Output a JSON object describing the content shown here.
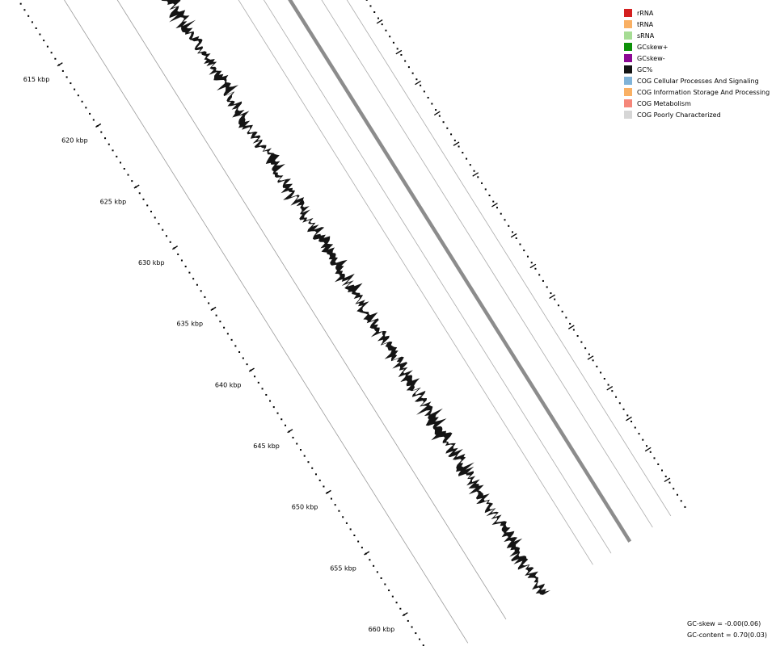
{
  "legend": {
    "items": [
      {
        "label": "rRNA",
        "color": "#d42020"
      },
      {
        "label": "tRNA",
        "color": "#f9b064"
      },
      {
        "label": "sRNA",
        "color": "#a6dc94"
      },
      {
        "label": "GCskew+",
        "color": "#0d9109"
      },
      {
        "label": "GCskew-",
        "color": "#8c0894"
      },
      {
        "label": "GC%",
        "color": "#141414"
      },
      {
        "label": "COG Cellular Processes And Signaling",
        "color": "#80b3d8"
      },
      {
        "label": "COG Information Storage And Processing",
        "color": "#f9b064"
      },
      {
        "label": "COG Metabolism",
        "color": "#f5877a"
      },
      {
        "label": "COG Poorly Characterized",
        "color": "#d6d6d6"
      }
    ]
  },
  "scale": {
    "unit": "kbp",
    "ticks": [
      615,
      620,
      625,
      630,
      635,
      640,
      645,
      650,
      655,
      660
    ],
    "tick_labels": [
      "615 kbp",
      "620 kbp",
      "625 kbp",
      "630 kbp",
      "635 kbp",
      "640 kbp",
      "645 kbp",
      "650 kbp",
      "655 kbp",
      "660 kbp"
    ]
  },
  "stats": {
    "gc_skew": "GC-skew = -0.00(0.06)",
    "gc_content": "GC-content = 0.70(0.03)"
  }
}
